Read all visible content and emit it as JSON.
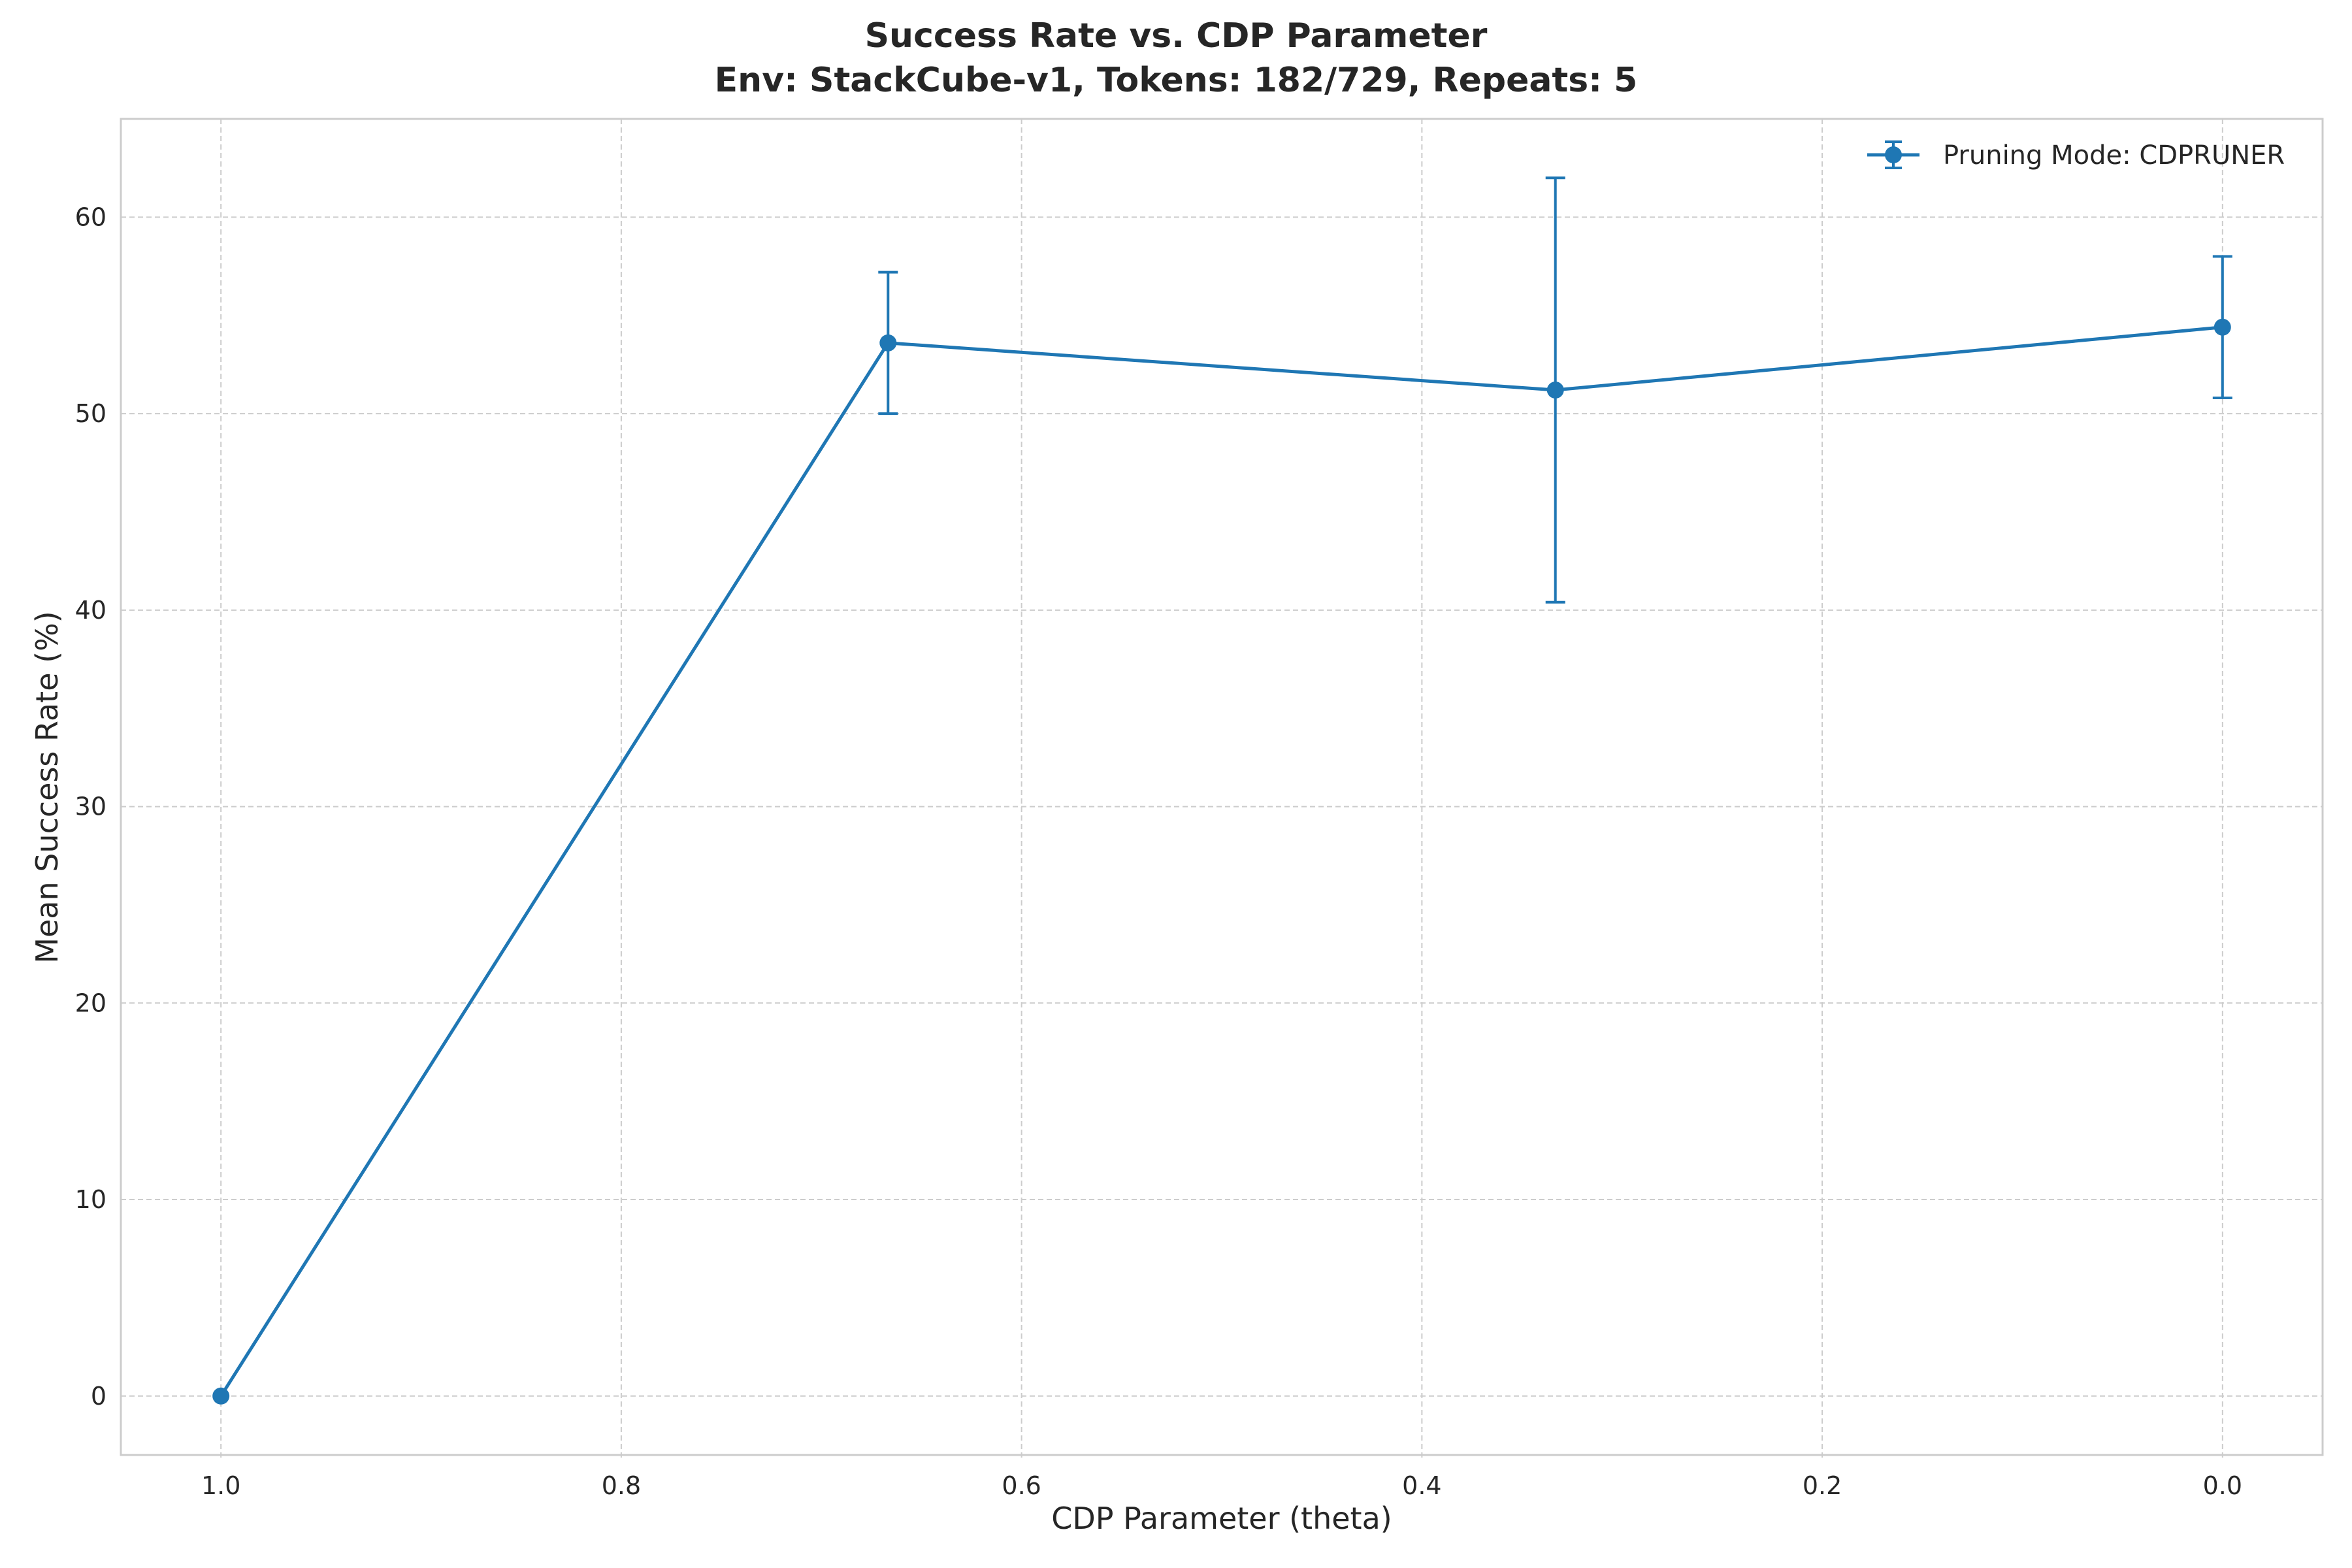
{
  "chart_data": {
    "type": "line",
    "title": "Success Rate vs. CDP Parameter",
    "subtitle": "Env: StackCube-v1, Tokens: 182/729, Repeats: 5",
    "xlabel": "CDP Parameter (theta)",
    "ylabel": "Mean Success Rate (%)",
    "xlim": [
      1.05,
      -0.05
    ],
    "x_inverted": true,
    "ylim": [
      -3,
      65
    ],
    "xticks": [
      1.0,
      0.8,
      0.6,
      0.4,
      0.2,
      0.0
    ],
    "xtick_labels": [
      "1.0",
      "0.8",
      "0.6",
      "0.4",
      "0.2",
      "0.0"
    ],
    "yticks": [
      0,
      10,
      20,
      30,
      40,
      50,
      60
    ],
    "ytick_labels": [
      "0",
      "10",
      "20",
      "30",
      "40",
      "50",
      "60"
    ],
    "grid": true,
    "legend_position": "top-right",
    "series": [
      {
        "name": "Pruning Mode: CDPRUNER",
        "color": "#1f77b4",
        "marker": "circle",
        "x": [
          1.0,
          0.6667,
          0.3333,
          0.0
        ],
        "y": [
          0.0,
          53.6,
          51.2,
          54.4
        ],
        "yerr": [
          0.0,
          3.6,
          10.8,
          3.6
        ]
      }
    ]
  }
}
